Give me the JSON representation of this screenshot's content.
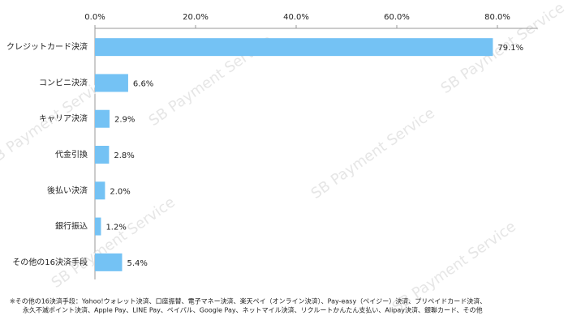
{
  "chart_data": {
    "type": "bar",
    "orientation": "horizontal",
    "watermark": "SB Payment Service",
    "categories": [
      "クレジットカード決済",
      "コンビニ決済",
      "キャリア決済",
      "代金引換",
      "後払い決済",
      "銀行振込",
      "その他の16決済手段"
    ],
    "values": [
      79.1,
      6.6,
      2.9,
      2.8,
      2.0,
      1.2,
      5.4
    ],
    "value_labels": [
      "79.1%",
      "6.6%",
      "2.9%",
      "2.8%",
      "2.0%",
      "1.2%",
      "5.4%"
    ],
    "color": "#74c2f4",
    "xlim": [
      0,
      88
    ],
    "xticks": [
      {
        "value": 0,
        "label": "0.0%"
      },
      {
        "value": 20,
        "label": "20.0%"
      },
      {
        "value": 40,
        "label": "40.0%"
      },
      {
        "value": 60,
        "label": "60.0%"
      },
      {
        "value": 80,
        "label": "80.0%"
      }
    ],
    "grid": false,
    "notes": [
      "※その他の16決済手段：Yahoo!ウォレット決済、口座振替、電子マネー決済、楽天ペイ（オンライン決済）、Pay-easy（ペイジー）決済、プリペイドカード決済、",
      "永久不滅ポイント決済、Apple Pay、LINE Pay、ペイパル、Google Pay、ネットマイル決済、リクルートかんたん支払い、Alipay決済、銀聯カード、その他"
    ]
  }
}
